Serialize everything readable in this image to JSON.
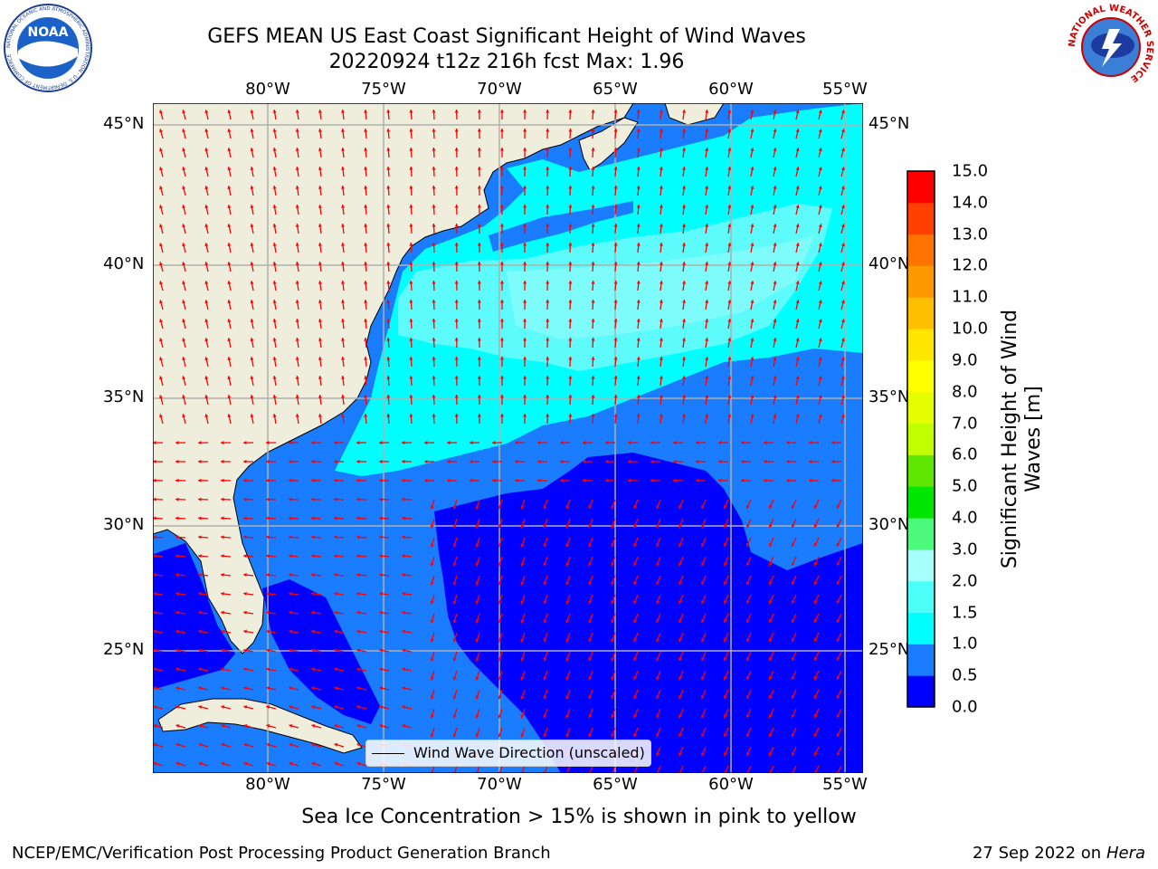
{
  "header": {
    "title_line1": "GEFS MEAN US East Coast Significant Height of Wind Waves",
    "title_line2": "20220924 t12z 216h fcst   Max: 1.96"
  },
  "logos": {
    "noaa_text": "NOAA",
    "noaa_ring": "NATIONAL OCEANIC AND ATMOSPHERIC ADMINISTRATION · U.S. DEPARTMENT OF COMMERCE",
    "nws_ring": "NATIONAL WEATHER SERVICE"
  },
  "map": {
    "lon_labels": [
      "80°W",
      "75°W",
      "70°W",
      "65°W",
      "60°W",
      "55°W"
    ],
    "lat_labels": [
      "45°N",
      "40°N",
      "35°N",
      "30°N",
      "25°N"
    ],
    "legend_text": "Wind Wave Direction (unscaled)",
    "colors": {
      "land": "#efeedc",
      "c0": "#0000ff",
      "c1": "#1a7cff",
      "c15": "#00ffff",
      "c2": "#5dfbfb",
      "arrow": "#ff0000",
      "grid": "#b0b0b0"
    }
  },
  "colorbar": {
    "label": "Significant Height of Wind Waves [m]",
    "ticks": [
      "0.0",
      "0.5",
      "1.0",
      "1.5",
      "2.0",
      "3.0",
      "4.0",
      "5.0",
      "6.0",
      "7.0",
      "8.0",
      "9.0",
      "10.0",
      "11.0",
      "12.0",
      "13.0",
      "14.0",
      "15.0"
    ],
    "colors": [
      "#0000ff",
      "#1a7cff",
      "#00ffff",
      "#4dfff9",
      "#a6fffb",
      "#4dfa7c",
      "#00e600",
      "#5ee600",
      "#bfff00",
      "#e6ff00",
      "#ffff00",
      "#ffe600",
      "#ffbf00",
      "#ff9900",
      "#ff7300",
      "#ff4000",
      "#ff0000"
    ]
  },
  "footer": {
    "sea_ice_note": "Sea Ice Concentration > 15% is shown in pink to yellow",
    "branch": "NCEP/EMC/Verification Post Processing Product Generation Branch",
    "date_prefix": "27 Sep 2022 on",
    "machine": "Hera"
  }
}
